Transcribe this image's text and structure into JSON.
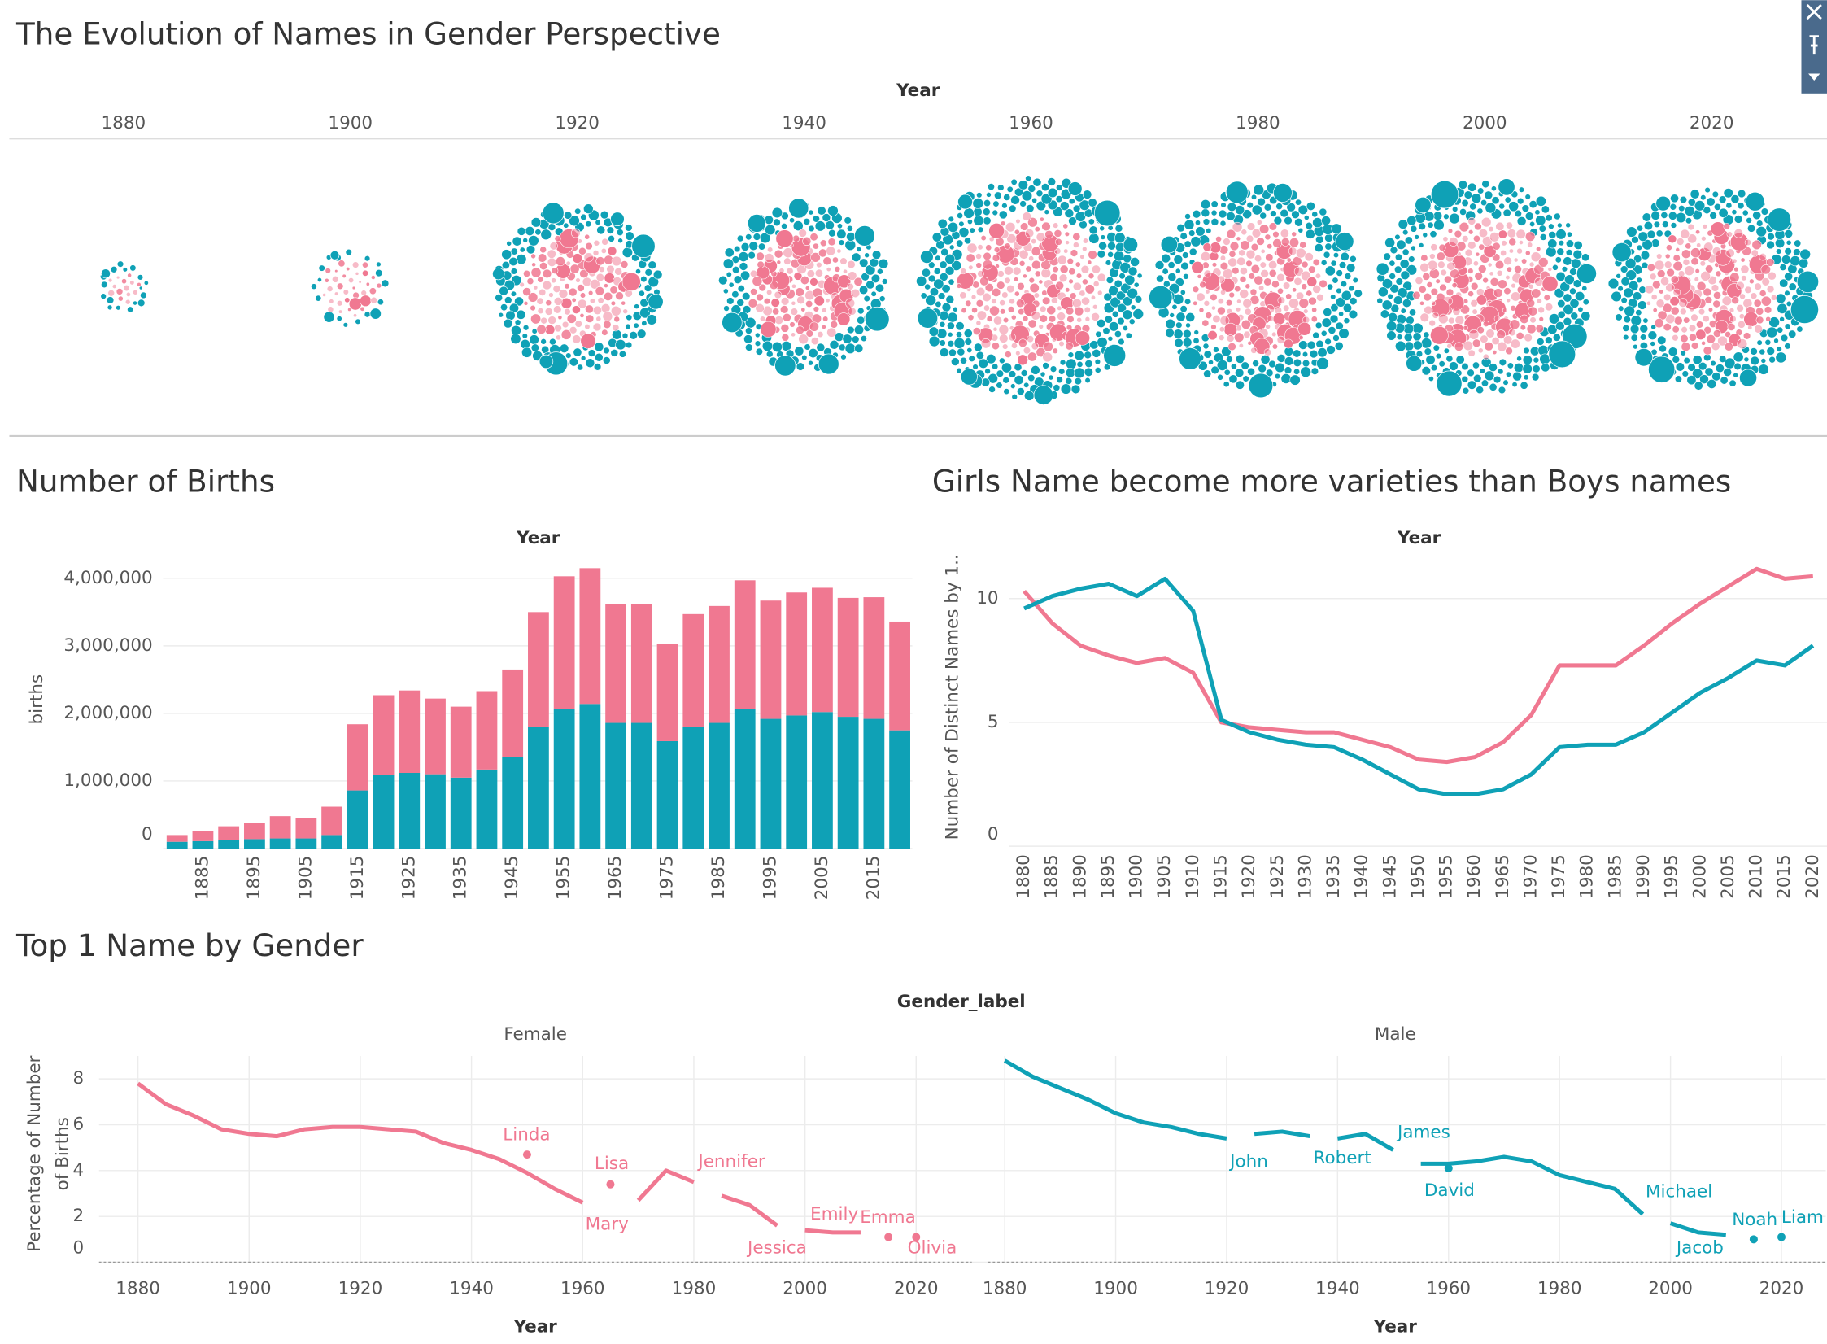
{
  "title": "The Evolution of Names in Gender Perspective",
  "chart_data": [
    {
      "type": "packed-bubble",
      "x_label": "Year",
      "categories": [
        1880,
        1900,
        1920,
        1940,
        1960,
        1980,
        2000,
        2020
      ],
      "series": [
        {
          "color": "#f07891",
          "values": [
            100000,
            330000,
            1180000,
            1160000,
            2010000,
            1670000,
            1820000,
            1610000
          ]
        },
        {
          "color": "#0fa1b6",
          "values": [
            100000,
            150000,
            1090000,
            1170000,
            2140000,
            1800000,
            1970000,
            1750000
          ]
        }
      ]
    },
    {
      "type": "stacked-bar",
      "title": "Number of Births",
      "x_label": "Year",
      "y_label": "births",
      "categories": [
        null,
        1885,
        null,
        1895,
        null,
        1905,
        null,
        1915,
        null,
        1925,
        null,
        1935,
        null,
        1945,
        null,
        1955,
        null,
        1965,
        null,
        1975,
        null,
        1985,
        null,
        1995,
        null,
        2005,
        null,
        2015,
        null
      ],
      "series": [
        {
          "color": "#0fa1b6",
          "values": [
            100000,
            110000,
            130000,
            140000,
            150000,
            150000,
            200000,
            860000,
            1090000,
            1120000,
            1100000,
            1050000,
            1170000,
            1360000,
            1800000,
            2070000,
            2140000,
            1860000,
            1860000,
            1590000,
            1800000,
            1860000,
            2070000,
            1920000,
            1970000,
            2020000,
            1950000,
            1920000,
            1750000
          ]
        },
        {
          "color": "#f07891",
          "values": [
            100000,
            150000,
            200000,
            240000,
            330000,
            300000,
            420000,
            980000,
            1180000,
            1220000,
            1120000,
            1050000,
            1160000,
            1290000,
            1700000,
            1960000,
            2010000,
            1760000,
            1760000,
            1440000,
            1670000,
            1730000,
            1900000,
            1750000,
            1820000,
            1840000,
            1760000,
            1800000,
            1610000
          ]
        }
      ],
      "ylim": [
        0,
        4450000
      ],
      "yticks": [
        0,
        {
          "value": 1000000,
          "label": "1,000,000"
        },
        {
          "value": 2000000,
          "label": "2,000,000"
        },
        {
          "value": 3000000,
          "label": "3,000,000"
        },
        {
          "value": 4000000,
          "label": "4,000,000"
        }
      ],
      "grid": true
    },
    {
      "type": "line",
      "title": "Girls Name become more varieties than Boys names",
      "x_label": "Year",
      "y_label": "Number of Distinct Names by 1..",
      "categories": [
        1880,
        1885,
        1890,
        1895,
        1900,
        1905,
        1910,
        1915,
        1920,
        1925,
        1930,
        1935,
        1940,
        1945,
        1950,
        1955,
        1960,
        1965,
        1970,
        1975,
        1980,
        1985,
        1990,
        1995,
        2000,
        2005,
        2010,
        2015,
        2020
      ],
      "series": [
        {
          "color": "#f07891",
          "values": [
            10.3,
            9.0,
            8.1,
            7.7,
            7.4,
            7.6,
            7.0,
            5.0,
            4.8,
            4.7,
            4.6,
            4.6,
            4.3,
            4.0,
            3.5,
            3.4,
            3.6,
            4.2,
            5.3,
            7.3,
            7.3,
            7.3,
            8.1,
            9.0,
            9.8,
            10.5,
            11.2,
            10.8,
            10.9
          ]
        },
        {
          "color": "#0fa1b6",
          "values": [
            9.6,
            10.1,
            10.4,
            10.6,
            10.1,
            10.8,
            9.5,
            5.1,
            4.6,
            4.3,
            4.1,
            4.0,
            3.5,
            2.9,
            2.3,
            2.1,
            2.1,
            2.3,
            2.9,
            4.0,
            4.1,
            4.1,
            4.6,
            5.4,
            6.2,
            6.8,
            7.5,
            7.3,
            8.1
          ]
        }
      ],
      "ylim": [
        0,
        12
      ],
      "yticks": [
        0,
        5,
        10
      ],
      "grid": true
    },
    {
      "type": "faceted-line",
      "title": "Top 1 Name by Gender",
      "facet_label": "Gender_label",
      "x_label": "Year",
      "y_label": [
        "Percentage of Number",
        "of Births"
      ],
      "x": [
        1880,
        1885,
        1890,
        1895,
        1900,
        1905,
        1910,
        1915,
        1920,
        1925,
        1930,
        1935,
        1940,
        1945,
        1950,
        1955,
        1960,
        1965,
        1970,
        1975,
        1980,
        1985,
        1990,
        1995,
        2000,
        2005,
        2010,
        2015,
        2020
      ],
      "ylim": [
        0,
        9
      ],
      "yticks": [
        0,
        2,
        4,
        6,
        8
      ],
      "xticks": [
        1880,
        1900,
        1920,
        1940,
        1960,
        1980,
        2000,
        2020
      ],
      "facets": [
        {
          "name": "Female",
          "color": "#f07891",
          "xlim": [
            1873,
            2030
          ],
          "series": [
            {
              "name": "Mary",
              "values": [
                7.8,
                6.9,
                6.4,
                5.8,
                5.6,
                5.5,
                5.8,
                5.9,
                5.9,
                5.8,
                5.7,
                5.2,
                4.9,
                4.5,
                3.9,
                3.2,
                2.6,
                null,
                null,
                null,
                null,
                null,
                null,
                null,
                null,
                null,
                null,
                null,
                null
              ]
            },
            {
              "name": "Linda",
              "values": [
                null,
                null,
                null,
                null,
                null,
                null,
                null,
                null,
                null,
                null,
                null,
                null,
                null,
                null,
                4.7,
                null,
                null,
                null,
                null,
                null,
                null,
                null,
                null,
                null,
                null,
                null,
                null,
                null,
                null
              ]
            },
            {
              "name": "Lisa",
              "values": [
                null,
                null,
                null,
                null,
                null,
                null,
                null,
                null,
                null,
                null,
                null,
                null,
                null,
                null,
                null,
                null,
                null,
                3.4,
                null,
                null,
                null,
                null,
                null,
                null,
                null,
                null,
                null,
                null,
                null
              ]
            },
            {
              "name": "Jennifer",
              "values": [
                null,
                null,
                null,
                null,
                null,
                null,
                null,
                null,
                null,
                null,
                null,
                null,
                null,
                null,
                null,
                null,
                null,
                null,
                2.7,
                4.0,
                3.5,
                null,
                null,
                null,
                null,
                null,
                null,
                null,
                null
              ]
            },
            {
              "name": "Jessica",
              "values": [
                null,
                null,
                null,
                null,
                null,
                null,
                null,
                null,
                null,
                null,
                null,
                null,
                null,
                null,
                null,
                null,
                null,
                null,
                null,
                null,
                null,
                2.9,
                2.5,
                1.6,
                null,
                null,
                null,
                null,
                null
              ]
            },
            {
              "name": "Emily",
              "values": [
                null,
                null,
                null,
                null,
                null,
                null,
                null,
                null,
                null,
                null,
                null,
                null,
                null,
                null,
                null,
                null,
                null,
                null,
                null,
                null,
                null,
                null,
                null,
                null,
                1.4,
                1.3,
                1.3,
                null,
                null
              ]
            },
            {
              "name": "Emma",
              "values": [
                null,
                null,
                null,
                null,
                null,
                null,
                null,
                null,
                null,
                null,
                null,
                null,
                null,
                null,
                null,
                null,
                null,
                null,
                null,
                null,
                null,
                null,
                null,
                null,
                null,
                null,
                null,
                1.1,
                null
              ]
            },
            {
              "name": "Olivia",
              "values": [
                null,
                null,
                null,
                null,
                null,
                null,
                null,
                null,
                null,
                null,
                null,
                null,
                null,
                null,
                null,
                null,
                null,
                null,
                null,
                null,
                null,
                null,
                null,
                null,
                null,
                null,
                null,
                null,
                1.1
              ]
            }
          ]
        },
        {
          "name": "Male",
          "color": "#0fa1b6",
          "xlim": [
            1877,
            2028
          ],
          "series": [
            {
              "name": "John",
              "values": [
                8.8,
                8.1,
                7.6,
                7.1,
                6.5,
                6.1,
                5.9,
                5.6,
                5.4,
                null,
                null,
                null,
                null,
                null,
                null,
                null,
                null,
                null,
                null,
                null,
                null,
                null,
                null,
                null,
                null,
                null,
                null,
                null,
                null
              ]
            },
            {
              "name": "Robert",
              "values": [
                null,
                null,
                null,
                null,
                null,
                null,
                null,
                null,
                null,
                5.6,
                5.7,
                5.5,
                null,
                null,
                null,
                null,
                null,
                null,
                null,
                null,
                null,
                null,
                null,
                null,
                null,
                null,
                null,
                null,
                null
              ]
            },
            {
              "name": "James",
              "values": [
                null,
                null,
                null,
                null,
                null,
                null,
                null,
                null,
                null,
                null,
                null,
                null,
                5.4,
                5.6,
                4.9,
                null,
                null,
                null,
                null,
                null,
                null,
                null,
                null,
                null,
                null,
                null,
                null,
                null,
                null
              ]
            },
            {
              "name": "David",
              "values": [
                null,
                null,
                null,
                null,
                null,
                null,
                null,
                null,
                null,
                null,
                null,
                null,
                null,
                null,
                null,
                null,
                4.1,
                null,
                null,
                null,
                null,
                null,
                null,
                null,
                null,
                null,
                null,
                null,
                null
              ]
            },
            {
              "name": "Michael",
              "values": [
                null,
                null,
                null,
                null,
                null,
                null,
                null,
                null,
                null,
                null,
                null,
                null,
                null,
                null,
                null,
                4.3,
                4.3,
                4.4,
                4.6,
                4.4,
                3.8,
                3.5,
                3.2,
                2.1,
                null,
                null,
                null,
                null,
                null
              ]
            },
            {
              "name": "Jacob",
              "values": [
                null,
                null,
                null,
                null,
                null,
                null,
                null,
                null,
                null,
                null,
                null,
                null,
                null,
                null,
                null,
                null,
                null,
                null,
                null,
                null,
                null,
                null,
                null,
                null,
                1.7,
                1.3,
                1.2,
                null,
                null
              ]
            },
            {
              "name": "Noah",
              "values": [
                null,
                null,
                null,
                null,
                null,
                null,
                null,
                null,
                null,
                null,
                null,
                null,
                null,
                null,
                null,
                null,
                null,
                null,
                null,
                null,
                null,
                null,
                null,
                null,
                null,
                null,
                null,
                1.0,
                null
              ]
            },
            {
              "name": "Liam",
              "values": [
                null,
                null,
                null,
                null,
                null,
                null,
                null,
                null,
                null,
                null,
                null,
                null,
                null,
                null,
                null,
                null,
                null,
                null,
                null,
                null,
                null,
                null,
                null,
                null,
                null,
                null,
                null,
                null,
                1.1
              ]
            }
          ]
        }
      ]
    }
  ]
}
